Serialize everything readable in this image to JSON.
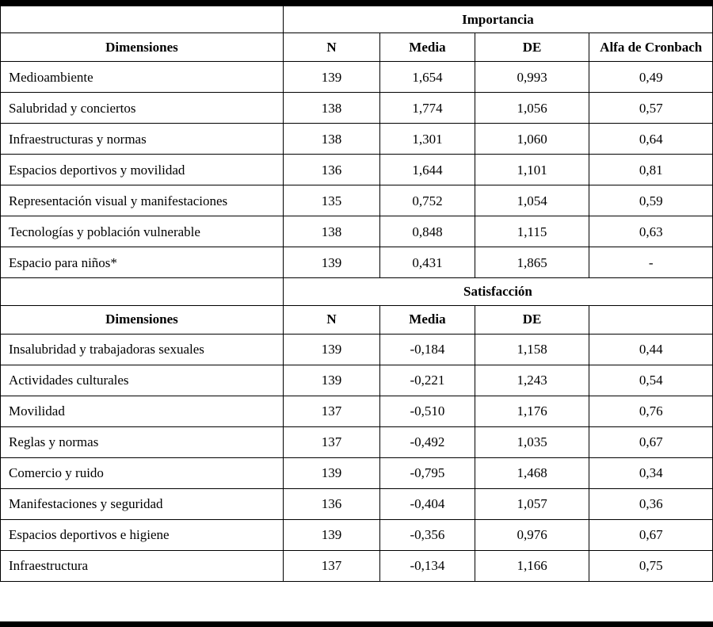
{
  "colors": {
    "border": "#000000",
    "background": "#ffffff",
    "text": "#000000"
  },
  "table": {
    "sections": [
      {
        "group_header": "Importancia",
        "col_headers": [
          "Dimensiones",
          "N",
          "Media",
          "DE",
          "Alfa de Cronbach"
        ],
        "rows": [
          [
            "Medioambiente",
            "139",
            "1,654",
            "0,993",
            "0,49"
          ],
          [
            "Salubridad y conciertos",
            "138",
            "1,774",
            "1,056",
            "0,57"
          ],
          [
            "Infraestructuras y normas",
            "138",
            "1,301",
            "1,060",
            "0,64"
          ],
          [
            "Espacios deportivos y movilidad",
            "136",
            "1,644",
            "1,101",
            "0,81"
          ],
          [
            "Representación visual y manifestaciones",
            "135",
            "0,752",
            "1,054",
            "0,59"
          ],
          [
            "Tecnologías y población vulnerable",
            "138",
            "0,848",
            "1,115",
            "0,63"
          ],
          [
            "Espacio para niños*",
            "139",
            "0,431",
            "1,865",
            "-"
          ]
        ]
      },
      {
        "group_header": "Satisfacción",
        "col_headers": [
          "Dimensiones",
          "N",
          "Media",
          "DE",
          ""
        ],
        "rows": [
          [
            "Insalubridad y trabajadoras sexuales",
            "139",
            "-0,184",
            "1,158",
            "0,44"
          ],
          [
            "Actividades culturales",
            "139",
            "-0,221",
            "1,243",
            "0,54"
          ],
          [
            "Movilidad",
            "137",
            "-0,510",
            "1,176",
            "0,76"
          ],
          [
            "Reglas y normas",
            "137",
            "-0,492",
            "1,035",
            "0,67"
          ],
          [
            "Comercio y ruido",
            "139",
            "-0,795",
            "1,468",
            "0,34"
          ],
          [
            "Manifestaciones y seguridad",
            "136",
            "-0,404",
            "1,057",
            "0,36"
          ],
          [
            "Espacios deportivos e higiene",
            "139",
            "-0,356",
            "0,976",
            "0,67"
          ],
          [
            "Infraestructura",
            "137",
            "-0,134",
            "1,166",
            "0,75"
          ]
        ]
      }
    ]
  }
}
